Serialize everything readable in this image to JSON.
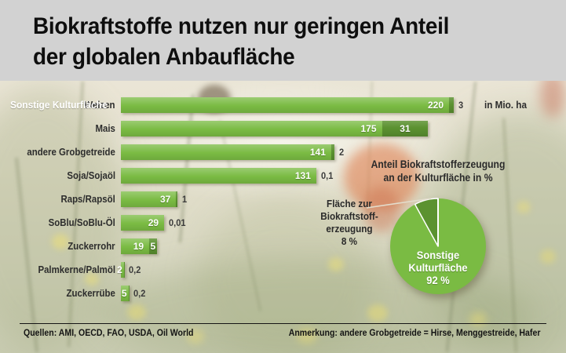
{
  "header": {
    "title_lines": [
      "Biokraftstoffe nutzen nur geringen Anteil",
      "der globalen Anbaufläche"
    ]
  },
  "colors": {
    "banner_bg": "#d2d2d2",
    "bar_light_green": "#7abb43",
    "bar_dark_green": "#5b9230",
    "text_dark": "#2d2d2d"
  },
  "chart_data": [
    {
      "type": "bar",
      "orientation": "horizontal",
      "unit_label": "in Mio. ha",
      "first_bar_annotation": "Sonstige Kulturfläche",
      "categories": [
        "Weizen",
        "Mais",
        "andere Grobgetreide",
        "Soja/Sojaöl",
        "Raps/Rapsöl",
        "SoBlu/SoBlu-Öl",
        "Zuckerrohr",
        "Palmkerne/Palmöl",
        "Zuckerrübe"
      ],
      "series": [
        {
          "name": "Sonstige Kulturfläche",
          "color": "#7abb43",
          "values": [
            220,
            175,
            141,
            131,
            37,
            29,
            19,
            2,
            5
          ],
          "value_labels": [
            "220",
            "175",
            "141",
            "131",
            "37",
            "29",
            "19",
            "2",
            "5"
          ]
        },
        {
          "name": "Fläche zur Biokraftstofferzeugung",
          "color": "#5b9230",
          "values": [
            3,
            31,
            2,
            0.1,
            1,
            0.01,
            5,
            0.2,
            0.2
          ],
          "value_labels": [
            "3",
            "31",
            "2",
            "0,1",
            "1",
            "0,01",
            "5",
            "0,2",
            "0,2"
          ]
        }
      ],
      "xlim": [
        0,
        240
      ],
      "grid": false,
      "legend_position": "none"
    },
    {
      "type": "pie",
      "title_lines": [
        "Anteil Biokraftstofferzeugung",
        "an der Kulturfläche in %"
      ],
      "slices": [
        {
          "label": "Sonstige Kulturfläche",
          "value": 92,
          "color": "#7abb43"
        },
        {
          "label": "Fläche zur Biokraftstofferzeugung",
          "value": 8,
          "color": "#5b9230"
        }
      ],
      "center_label_lines": [
        "Sonstige",
        "Kulturfläche",
        "92 %"
      ],
      "callout_label_lines": [
        "Fläche zur",
        "Biokraftstoff-",
        "erzeugung",
        "8 %"
      ]
    }
  ],
  "footer": {
    "sources": "Quellen: AMI, OECD, FAO, USDA, Oil World",
    "note": "Anmerkung: andere Grobgetreide = Hirse, Menggestreide, Hafer"
  }
}
